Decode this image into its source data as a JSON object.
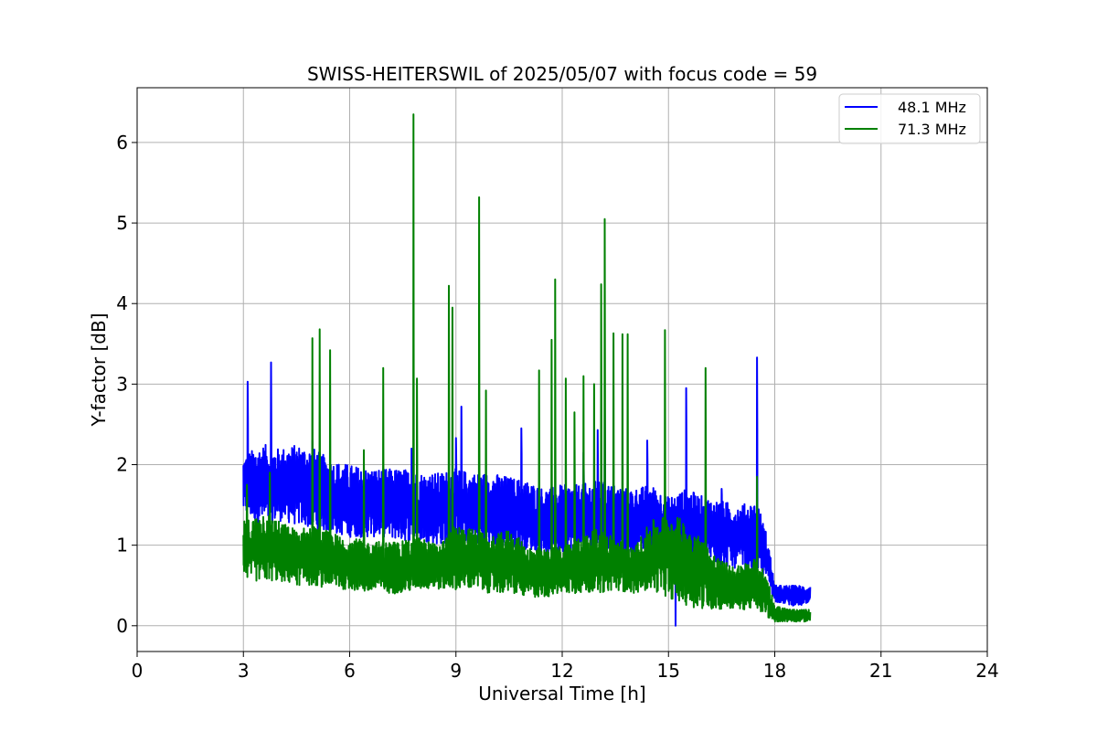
{
  "chart_data": {
    "type": "line",
    "title": "SWISS-HEITERSWIL of 2025/05/07 with focus code = 59",
    "xlabel": "Universal Time [h]",
    "ylabel": "Y-factor [dB]",
    "xlim": [
      0,
      24
    ],
    "ylim": [
      -0.32,
      6.68
    ],
    "xticks": [
      0,
      3,
      6,
      9,
      12,
      15,
      18,
      21,
      24
    ],
    "yticks": [
      0,
      1,
      2,
      3,
      4,
      5,
      6
    ],
    "grid": true,
    "legend_position": "top-right",
    "x_range_covered": [
      3.0,
      19.0
    ],
    "series": [
      {
        "name": "48.1 MHz",
        "color": "#0000ff",
        "envelope": {
          "x": [
            3.0,
            3.3,
            3.6,
            4.0,
            4.5,
            5.0,
            5.5,
            6.0,
            6.5,
            7.0,
            7.5,
            8.0,
            8.5,
            9.0,
            9.5,
            10.0,
            10.5,
            11.0,
            11.5,
            12.0,
            12.5,
            13.0,
            13.5,
            14.0,
            14.5,
            15.0,
            15.5,
            16.0,
            16.5,
            17.0,
            17.5,
            17.8,
            18.0,
            18.5,
            19.0
          ],
          "max": [
            2.1,
            2.2,
            2.25,
            2.2,
            2.25,
            2.2,
            2.05,
            2.0,
            1.95,
            1.95,
            1.95,
            1.9,
            1.9,
            1.95,
            1.9,
            1.9,
            1.85,
            1.8,
            1.7,
            1.75,
            1.75,
            1.8,
            1.75,
            1.7,
            1.75,
            1.6,
            1.7,
            1.6,
            1.55,
            1.5,
            1.55,
            1.1,
            0.5,
            0.5,
            0.5
          ],
          "min": [
            1.4,
            1.3,
            1.25,
            1.3,
            1.25,
            1.2,
            1.15,
            1.1,
            1.1,
            1.1,
            1.05,
            1.05,
            1.0,
            1.05,
            1.0,
            1.0,
            0.95,
            0.95,
            0.9,
            0.9,
            0.95,
            0.95,
            0.9,
            0.9,
            0.95,
            0.85,
            0.85,
            0.8,
            0.75,
            0.7,
            0.65,
            0.55,
            0.3,
            0.25,
            0.25
          ]
        },
        "spikes": [
          {
            "x": 3.12,
            "y": 3.03
          },
          {
            "x": 3.78,
            "y": 3.27
          },
          {
            "x": 4.95,
            "y": 2.3
          },
          {
            "x": 7.75,
            "y": 2.2
          },
          {
            "x": 9.0,
            "y": 2.33
          },
          {
            "x": 9.15,
            "y": 2.72
          },
          {
            "x": 10.85,
            "y": 2.45
          },
          {
            "x": 12.6,
            "y": 2.15
          },
          {
            "x": 13.0,
            "y": 2.43
          },
          {
            "x": 13.2,
            "y": 2.72
          },
          {
            "x": 14.4,
            "y": 2.3
          },
          {
            "x": 15.2,
            "y": 0.0
          },
          {
            "x": 15.5,
            "y": 2.95
          },
          {
            "x": 16.5,
            "y": 1.7
          },
          {
            "x": 17.5,
            "y": 3.33
          }
        ]
      },
      {
        "name": "71.3 MHz",
        "color": "#008000",
        "envelope": {
          "x": [
            3.0,
            3.3,
            3.6,
            4.0,
            4.5,
            5.0,
            5.5,
            6.0,
            6.5,
            7.0,
            7.5,
            8.0,
            8.5,
            9.0,
            9.5,
            10.0,
            10.5,
            11.0,
            11.5,
            12.0,
            12.5,
            13.0,
            13.5,
            14.0,
            14.5,
            15.0,
            15.5,
            16.0,
            16.5,
            17.0,
            17.5,
            17.8,
            18.0,
            18.5,
            19.0
          ],
          "max": [
            1.3,
            1.35,
            1.45,
            1.3,
            1.2,
            1.25,
            1.15,
            1.1,
            1.05,
            1.05,
            1.05,
            1.1,
            1.0,
            1.25,
            1.2,
            1.1,
            1.2,
            1.0,
            0.95,
            1.0,
            1.1,
            1.2,
            1.1,
            0.95,
            1.3,
            1.4,
            1.3,
            1.05,
            0.8,
            0.75,
            0.85,
            0.6,
            0.25,
            0.2,
            0.2
          ],
          "min": [
            0.6,
            0.55,
            0.55,
            0.55,
            0.5,
            0.5,
            0.45,
            0.45,
            0.4,
            0.4,
            0.4,
            0.45,
            0.45,
            0.45,
            0.45,
            0.4,
            0.4,
            0.35,
            0.35,
            0.4,
            0.4,
            0.4,
            0.45,
            0.4,
            0.45,
            0.35,
            0.25,
            0.2,
            0.2,
            0.2,
            0.2,
            0.1,
            0.05,
            0.05,
            0.05
          ]
        },
        "spikes": [
          {
            "x": 3.1,
            "y": 1.75
          },
          {
            "x": 3.75,
            "y": 1.9
          },
          {
            "x": 4.95,
            "y": 3.57
          },
          {
            "x": 5.15,
            "y": 3.68
          },
          {
            "x": 5.45,
            "y": 3.42
          },
          {
            "x": 6.4,
            "y": 2.18
          },
          {
            "x": 6.95,
            "y": 3.2
          },
          {
            "x": 7.8,
            "y": 6.35
          },
          {
            "x": 7.9,
            "y": 3.07
          },
          {
            "x": 8.8,
            "y": 4.22
          },
          {
            "x": 8.9,
            "y": 3.95
          },
          {
            "x": 9.65,
            "y": 5.32
          },
          {
            "x": 9.85,
            "y": 2.92
          },
          {
            "x": 11.35,
            "y": 3.17
          },
          {
            "x": 11.7,
            "y": 3.55
          },
          {
            "x": 11.8,
            "y": 4.3
          },
          {
            "x": 12.1,
            "y": 3.07
          },
          {
            "x": 12.35,
            "y": 2.65
          },
          {
            "x": 12.6,
            "y": 3.1
          },
          {
            "x": 12.9,
            "y": 3.0
          },
          {
            "x": 13.1,
            "y": 4.24
          },
          {
            "x": 13.2,
            "y": 5.05
          },
          {
            "x": 13.45,
            "y": 3.63
          },
          {
            "x": 13.7,
            "y": 3.62
          },
          {
            "x": 13.85,
            "y": 3.62
          },
          {
            "x": 14.9,
            "y": 3.67
          },
          {
            "x": 16.05,
            "y": 3.2
          },
          {
            "x": 17.5,
            "y": 1.85
          }
        ]
      }
    ]
  }
}
